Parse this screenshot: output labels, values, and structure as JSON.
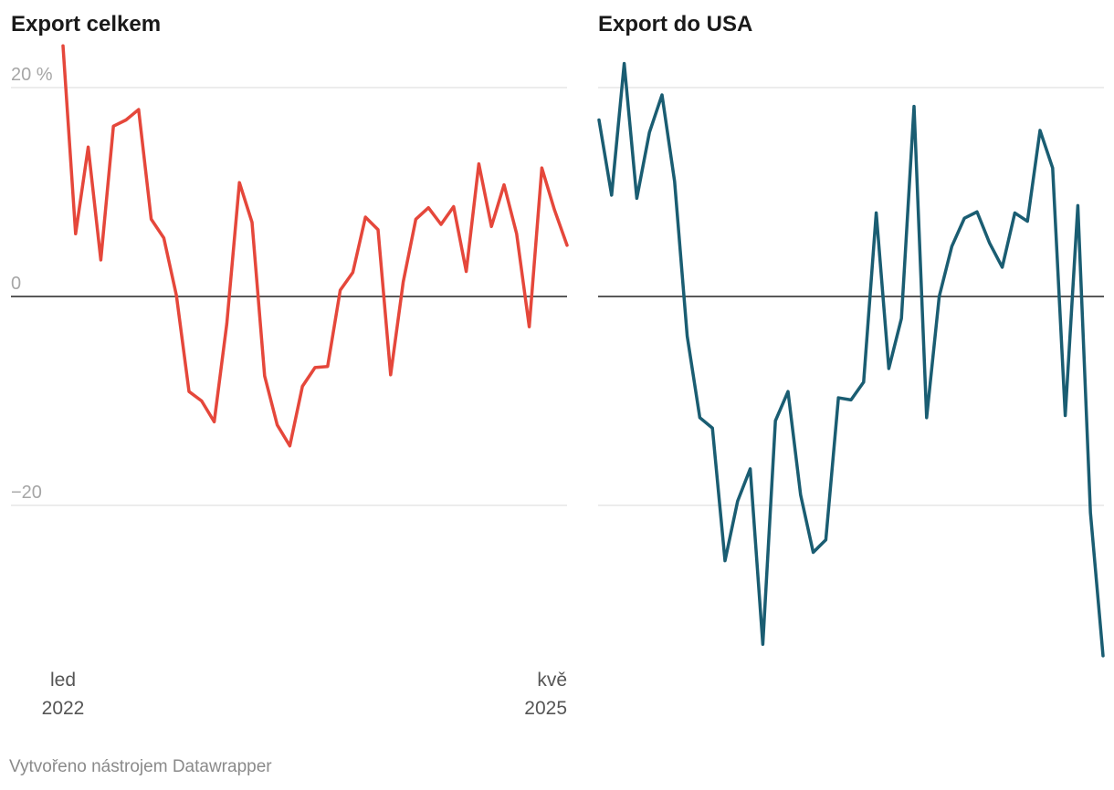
{
  "chart_data": [
    {
      "type": "line",
      "title": "Export celkem",
      "xlabel": "",
      "ylabel": "",
      "ylim": [
        -34,
        24
      ],
      "x_start": "led 2022",
      "x_end": "kvě 2025",
      "y_ticks": [
        {
          "value": 20,
          "label": "20 %"
        },
        {
          "value": 0,
          "label": "0"
        },
        {
          "value": -20,
          "label": "−20"
        }
      ],
      "x_tick_labels": [
        {
          "month": "led",
          "year": "2022"
        },
        {
          "month": "kvě",
          "year": "2025"
        }
      ],
      "grid": true,
      "legend": "none",
      "color": "#e5473b",
      "series": [
        {
          "values": [
            24.0,
            6.0,
            14.3,
            3.5,
            16.3,
            16.9,
            17.9,
            7.4,
            5.6,
            0.1,
            -9.1,
            -10.0,
            -12.0,
            -2.6,
            10.9,
            7.1,
            -7.6,
            -12.3,
            -14.3,
            -8.6,
            -6.8,
            -6.7,
            0.6,
            2.3,
            7.6,
            6.4,
            -7.5,
            1.4,
            7.4,
            8.5,
            6.9,
            8.6,
            2.4,
            12.7,
            6.7,
            10.7,
            6.0,
            -2.9,
            12.3,
            8.3,
            4.9
          ]
        }
      ]
    },
    {
      "type": "line",
      "title": "Export do USA",
      "xlabel": "",
      "ylabel": "",
      "ylim": [
        -34,
        24
      ],
      "x_start": "led 2022",
      "x_end": "kvě 2025",
      "grid": true,
      "legend": "none",
      "color": "#1a5d72",
      "series": [
        {
          "values": [
            16.9,
            9.7,
            22.3,
            9.4,
            15.7,
            19.3,
            11.0,
            -3.8,
            -11.6,
            -12.6,
            -25.3,
            -19.6,
            -16.5,
            -33.3,
            -11.9,
            -9.1,
            -19.0,
            -24.5,
            -23.3,
            -9.7,
            -9.9,
            -8.2,
            8.0,
            -6.9,
            -2.1,
            18.2,
            -11.6,
            0.0,
            4.8,
            7.5,
            8.1,
            5.1,
            2.8,
            8.0,
            7.2,
            15.9,
            12.3,
            -11.4,
            8.7,
            -20.7,
            -34.4
          ]
        }
      ]
    }
  ],
  "footer": {
    "credit": "Vytvořeno nástrojem Datawrapper"
  }
}
